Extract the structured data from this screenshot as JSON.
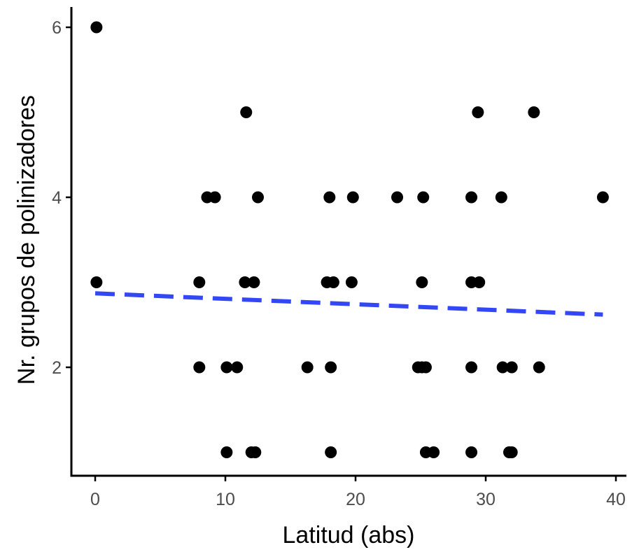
{
  "chart_data": {
    "type": "scatter",
    "title": "",
    "xlabel": "Latitud (abs)",
    "ylabel": "Nr. grupos de polinizadores",
    "xlim": [
      -1.8,
      40.8
    ],
    "ylim": [
      0.7,
      6.2
    ],
    "xticks": [
      0,
      10,
      20,
      30,
      40
    ],
    "yticks": [
      2,
      4,
      6
    ],
    "grid": false,
    "legend": "none",
    "colors": {
      "points": "#000000",
      "trend": "#3347f5",
      "axis": "#000000",
      "tick_text": "#4d4d4d"
    },
    "points": [
      [
        0.1,
        6
      ],
      [
        0.1,
        3
      ],
      [
        11.6,
        5
      ],
      [
        29.4,
        5
      ],
      [
        33.7,
        5
      ],
      [
        8.6,
        4
      ],
      [
        9.2,
        4
      ],
      [
        12.5,
        4
      ],
      [
        18.0,
        4
      ],
      [
        19.8,
        4
      ],
      [
        23.2,
        4
      ],
      [
        25.2,
        4
      ],
      [
        28.9,
        4
      ],
      [
        31.2,
        4
      ],
      [
        39.0,
        4
      ],
      [
        8.0,
        3
      ],
      [
        11.5,
        3
      ],
      [
        12.2,
        3
      ],
      [
        17.8,
        3
      ],
      [
        18.3,
        3
      ],
      [
        19.7,
        3
      ],
      [
        25.1,
        3
      ],
      [
        28.9,
        3
      ],
      [
        29.5,
        3
      ],
      [
        8.0,
        2
      ],
      [
        10.1,
        2
      ],
      [
        10.9,
        2
      ],
      [
        16.3,
        2
      ],
      [
        18.1,
        2
      ],
      [
        24.8,
        2
      ],
      [
        25.1,
        2
      ],
      [
        25.4,
        2
      ],
      [
        28.9,
        2
      ],
      [
        31.3,
        2
      ],
      [
        32.0,
        2
      ],
      [
        34.1,
        2
      ],
      [
        10.1,
        1
      ],
      [
        12.0,
        1
      ],
      [
        12.3,
        1
      ],
      [
        18.1,
        1
      ],
      [
        25.4,
        1
      ],
      [
        26.0,
        1
      ],
      [
        28.9,
        1
      ],
      [
        31.8,
        1
      ],
      [
        32.0,
        1
      ]
    ],
    "trend_line": {
      "style": "dashed",
      "x": [
        0,
        39
      ],
      "y": [
        2.87,
        2.62
      ]
    }
  }
}
